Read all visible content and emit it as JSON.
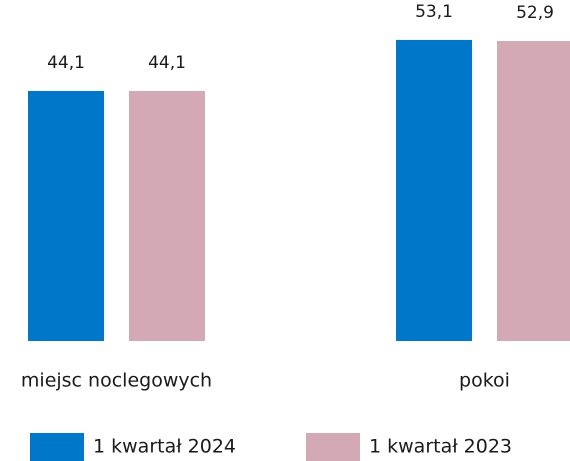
{
  "chart_data": {
    "type": "bar",
    "categories": [
      "miejsc noclegowych",
      "pokoi"
    ],
    "series": [
      {
        "name": "1 kwartał 2024",
        "color": "#0077c8",
        "values": [
          44.1,
          53.1
        ],
        "value_labels": [
          "44,1",
          "53,1"
        ]
      },
      {
        "name": "1 kwartał 2023",
        "color": "#d3a9b5",
        "values": [
          44.1,
          52.9
        ],
        "value_labels": [
          "44,1",
          "52,9"
        ]
      }
    ],
    "legend": "bottom"
  }
}
